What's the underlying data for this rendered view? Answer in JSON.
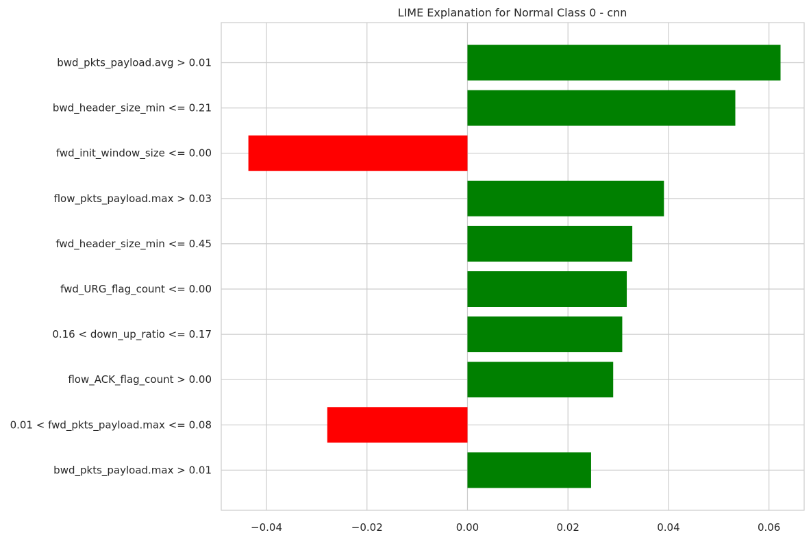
{
  "chart_data": {
    "type": "bar",
    "orientation": "horizontal",
    "title": "LIME Explanation for Normal Class 0 - cnn",
    "xlabel": "",
    "ylabel": "",
    "xlim": [
      -0.049,
      0.067
    ],
    "x_ticks": [
      -0.04,
      -0.02,
      0.0,
      0.02,
      0.04,
      0.06
    ],
    "x_tick_labels": [
      "−0.04",
      "−0.02",
      "0.00",
      "0.02",
      "0.04",
      "0.06"
    ],
    "grid": true,
    "categories": [
      "bwd_pkts_payload.avg > 0.01",
      "bwd_header_size_min <= 0.21",
      "fwd_init_window_size <= 0.00",
      "flow_pkts_payload.max > 0.03",
      "fwd_header_size_min <= 0.45",
      "fwd_URG_flag_count <= 0.00",
      "0.16 < down_up_ratio <= 0.17",
      "flow_ACK_flag_count > 0.00",
      "0.01 < fwd_pkts_payload.max <= 0.08",
      "bwd_pkts_payload.max > 0.01"
    ],
    "values": [
      0.0623,
      0.0533,
      -0.0436,
      0.0391,
      0.0328,
      0.0317,
      0.0308,
      0.029,
      -0.0279,
      0.0246
    ],
    "colors": {
      "positive": "#008000",
      "negative": "#ff0000"
    }
  }
}
